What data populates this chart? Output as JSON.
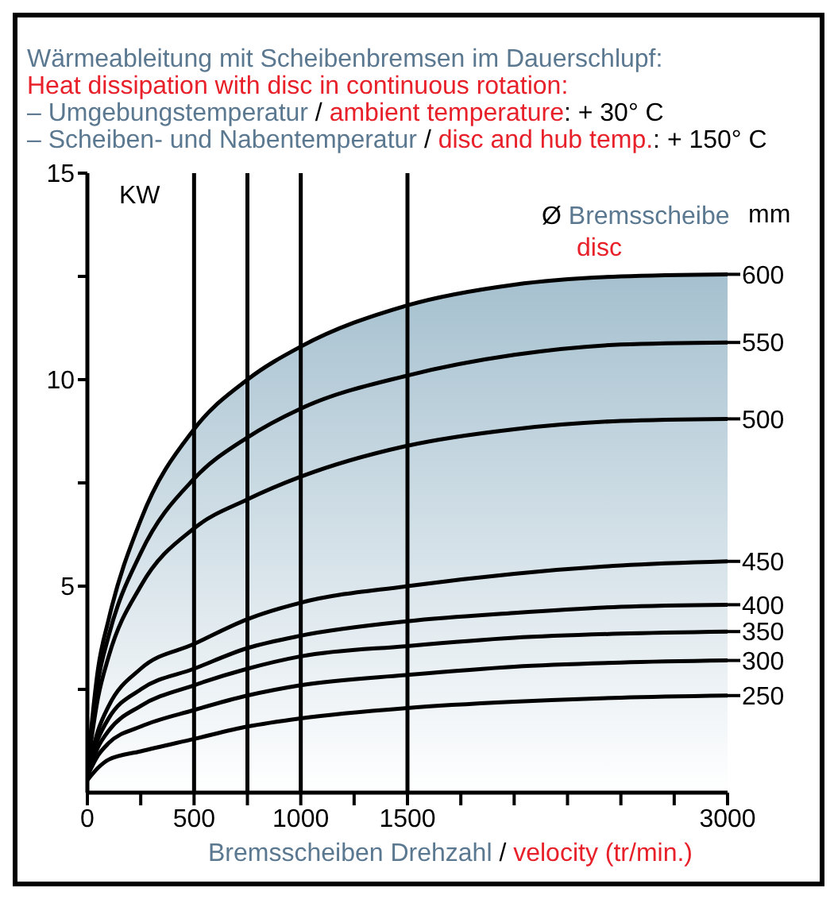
{
  "chart_data": {
    "type": "line",
    "title": "Wärmeableitung  mit Scheibenbremsen im Dauerschlupf:",
    "subtitle": "Heat dissipation with disc in continuous rotation:",
    "annotations": [
      "– Umgebungstemperatur / ambient temperature: + 30° C",
      "– Scheiben- und Nabentemperatur / disc and hub temp.: + 150° C",
      "disc",
      "mm"
    ],
    "legend_title": "Ø Bremsscheibe",
    "xlabel": "Bremsscheiben Drehzahl / velocity (tr/min.)",
    "ylabel": "KW",
    "x": [
      0,
      50,
      100,
      250,
      500,
      750,
      1000,
      1500,
      2000,
      2500,
      3000
    ],
    "series": [
      {
        "name": "600",
        "type": "area",
        "color": "#a5c0cf",
        "values": [
          0.6,
          3,
          4.2,
          6.6,
          8.8,
          10,
          10.8,
          11.8,
          12.3,
          12.5,
          12.55
        ]
      },
      {
        "name": "550",
        "color": "#000000",
        "values": [
          0.6,
          2.7,
          3.8,
          5.8,
          7.6,
          8.6,
          9.3,
          10.1,
          10.6,
          10.85,
          10.9
        ]
      },
      {
        "name": "500",
        "color": "#000000",
        "values": [
          0.6,
          2.3,
          3.3,
          5,
          6.4,
          7.1,
          7.65,
          8.4,
          8.8,
          9,
          9.05
        ]
      },
      {
        "name": "450",
        "color": "#000000",
        "values": [
          0.5,
          1.5,
          2.1,
          3,
          3.6,
          4.2,
          4.6,
          5,
          5.3,
          5.5,
          5.6
        ]
      },
      {
        "name": "400",
        "color": "#000000",
        "values": [
          0.5,
          1.3,
          1.8,
          2.5,
          3,
          3.5,
          3.8,
          4.15,
          4.35,
          4.5,
          4.55
        ]
      },
      {
        "name": "350",
        "color": "#000000",
        "values": [
          0.4,
          1.1,
          1.5,
          2.1,
          2.6,
          3,
          3.3,
          3.55,
          3.75,
          3.85,
          3.9
        ]
      },
      {
        "name": "300",
        "color": "#000000",
        "values": [
          0.4,
          0.9,
          1.2,
          1.6,
          2,
          2.35,
          2.6,
          2.85,
          3.05,
          3.15,
          3.2
        ]
      },
      {
        "name": "250",
        "color": "#000000",
        "values": [
          0.3,
          0.6,
          0.8,
          1,
          1.3,
          1.6,
          1.8,
          2.05,
          2.2,
          2.3,
          2.35
        ]
      }
    ],
    "xlim": [
      0,
      3000
    ],
    "xticks": [
      0,
      {
        "value": 250,
        "label": null
      },
      500,
      {
        "value": 750,
        "label": null
      },
      1000,
      {
        "value": 1250,
        "label": null
      },
      1500,
      {
        "value": 1750,
        "label": null
      },
      {
        "value": 2000,
        "label": null
      },
      {
        "value": 2250,
        "label": null
      },
      {
        "value": 2500,
        "label": null
      },
      {
        "value": 2750,
        "label": null
      },
      3000
    ],
    "ylim": [
      0,
      15
    ],
    "yticks": [
      {
        "value": 2.5,
        "label": null
      },
      5,
      {
        "value": 7.5,
        "label": null
      },
      10,
      {
        "value": 12.5,
        "label": null
      },
      15
    ],
    "ref_lines": [
      {
        "axis": "x",
        "value": 500
      },
      {
        "axis": "x",
        "value": 750
      },
      {
        "axis": "x",
        "value": 1000
      },
      {
        "axis": "x",
        "value": 1500
      }
    ],
    "legend": "right",
    "line_style": "solid",
    "marker": "none"
  }
}
